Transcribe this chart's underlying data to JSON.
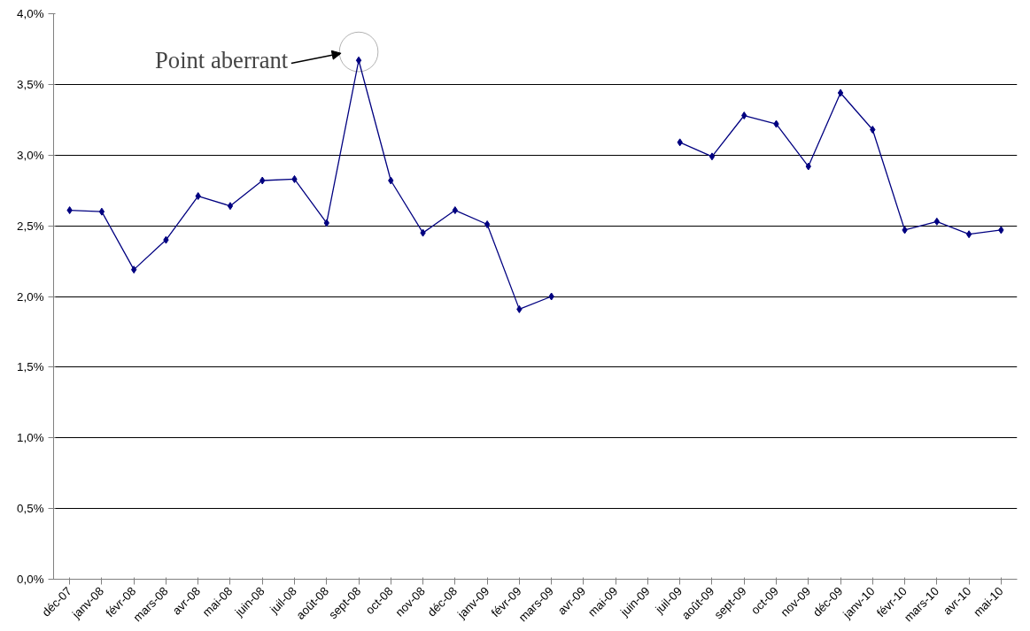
{
  "chart_data": {
    "type": "line",
    "categories": [
      "déc-07",
      "janv-08",
      "févr-08",
      "mars-08",
      "avr-08",
      "mai-08",
      "juin-08",
      "juil-08",
      "août-08",
      "sept-08",
      "oct-08",
      "nov-08",
      "déc-08",
      "janv-09",
      "févr-09",
      "mars-09",
      "avr-09",
      "mai-09",
      "juin-09",
      "juil-09",
      "août-09",
      "sept-09",
      "oct-09",
      "nov-09",
      "déc-09",
      "janv-10",
      "févr-10",
      "mars-10",
      "avr-10",
      "mai-10"
    ],
    "series": [
      {
        "color": "#000080",
        "values": [
          2.61,
          2.6,
          2.19,
          2.4,
          2.71,
          2.64,
          2.82,
          2.83,
          2.52,
          3.67,
          2.82,
          2.45,
          2.61,
          2.51,
          1.91,
          2.0,
          null,
          null,
          null,
          3.09,
          2.99,
          3.28,
          3.22,
          2.92,
          3.44,
          3.18,
          2.47,
          2.53,
          2.44,
          2.47
        ]
      }
    ],
    "ylim": [
      0,
      4
    ],
    "yticks": [
      {
        "value": 0,
        "label": "0,0%"
      },
      {
        "value": 0.5,
        "label": "0,5%"
      },
      {
        "value": 1,
        "label": "1,0%"
      },
      {
        "value": 1.5,
        "label": "1,5%"
      },
      {
        "value": 2,
        "label": "2,0%"
      },
      {
        "value": 2.5,
        "label": "2,5%"
      },
      {
        "value": 3,
        "label": "3,0%"
      },
      {
        "value": 3.5,
        "label": "3,5%"
      },
      {
        "value": 4,
        "label": "4,0%"
      }
    ],
    "grid": "y",
    "marker": "diamond",
    "line_style": "solid",
    "annotations": [
      {
        "text": "Point aberrant",
        "x": "sept-08",
        "y": 3.67
      }
    ]
  }
}
